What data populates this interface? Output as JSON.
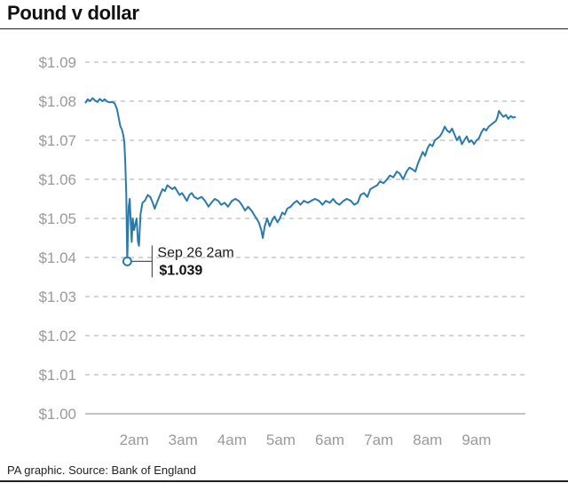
{
  "title": "Pound v dollar",
  "source": "PA graphic. Source: Bank of England",
  "colors": {
    "line": "#2a7aaa",
    "grid": "#bdbdbd",
    "axis": "#9a9a9a",
    "text": "#1a1a1a"
  },
  "chart_data": {
    "type": "line",
    "title": "Pound v dollar",
    "xlabel": "",
    "ylabel": "",
    "ylim": [
      1.0,
      1.09
    ],
    "xlim": [
      1.0,
      10.0
    ],
    "grid": true,
    "y_ticks": [
      {
        "value": 1.09,
        "label": "$1.09"
      },
      {
        "value": 1.08,
        "label": "$1.08"
      },
      {
        "value": 1.07,
        "label": "$1.07"
      },
      {
        "value": 1.06,
        "label": "$1.06"
      },
      {
        "value": 1.05,
        "label": "$1.05"
      },
      {
        "value": 1.04,
        "label": "$1.04"
      },
      {
        "value": 1.03,
        "label": "$1.03"
      },
      {
        "value": 1.02,
        "label": "$1.02"
      },
      {
        "value": 1.01,
        "label": "$1.01"
      },
      {
        "value": 1.0,
        "label": "$1.00"
      }
    ],
    "x_ticks": [
      {
        "value": 2,
        "label": "2am"
      },
      {
        "value": 3,
        "label": "3am"
      },
      {
        "value": 4,
        "label": "4am"
      },
      {
        "value": 5,
        "label": "5am"
      },
      {
        "value": 6,
        "label": "6am"
      },
      {
        "value": 7,
        "label": "7am"
      },
      {
        "value": 8,
        "label": "8am"
      },
      {
        "value": 9,
        "label": "9am"
      }
    ],
    "series": [
      {
        "points": [
          [
            1.0,
            1.0795
          ],
          [
            1.05,
            1.0805
          ],
          [
            1.1,
            1.08
          ],
          [
            1.15,
            1.0808
          ],
          [
            1.2,
            1.0802
          ],
          [
            1.25,
            1.0798
          ],
          [
            1.3,
            1.0806
          ],
          [
            1.35,
            1.08
          ],
          [
            1.4,
            1.0805
          ],
          [
            1.45,
            1.0799
          ],
          [
            1.5,
            1.0797
          ],
          [
            1.55,
            1.0798
          ],
          [
            1.6,
            1.0795
          ],
          [
            1.65,
            1.078
          ],
          [
            1.68,
            1.076
          ],
          [
            1.72,
            1.0735
          ],
          [
            1.75,
            1.0728
          ],
          [
            1.78,
            1.0712
          ],
          [
            1.8,
            1.0695
          ],
          [
            1.82,
            1.064
          ],
          [
            1.84,
            1.056
          ],
          [
            1.855,
            1.043
          ],
          [
            1.86,
            1.039
          ],
          [
            1.875,
            1.047
          ],
          [
            1.89,
            1.053
          ],
          [
            1.91,
            1.055
          ],
          [
            1.93,
            1.049
          ],
          [
            1.95,
            1.044
          ],
          [
            1.97,
            1.05
          ],
          [
            2.0,
            1.047
          ],
          [
            2.05,
            1.05
          ],
          [
            2.08,
            1.044
          ],
          [
            2.1,
            1.043
          ],
          [
            2.13,
            1.051
          ],
          [
            2.17,
            1.054
          ],
          [
            2.22,
            1.0545
          ],
          [
            2.28,
            1.056
          ],
          [
            2.33,
            1.0555
          ],
          [
            2.38,
            1.054
          ],
          [
            2.42,
            1.0525
          ],
          [
            2.48,
            1.0545
          ],
          [
            2.53,
            1.056
          ],
          [
            2.58,
            1.0575
          ],
          [
            2.63,
            1.057
          ],
          [
            2.68,
            1.0585
          ],
          [
            2.73,
            1.058
          ],
          [
            2.78,
            1.0575
          ],
          [
            2.83,
            1.058
          ],
          [
            2.88,
            1.057
          ],
          [
            2.93,
            1.056
          ],
          [
            2.98,
            1.0565
          ],
          [
            3.03,
            1.0555
          ],
          [
            3.08,
            1.0545
          ],
          [
            3.13,
            1.056
          ],
          [
            3.18,
            1.0565
          ],
          [
            3.23,
            1.0555
          ],
          [
            3.3,
            1.055
          ],
          [
            3.38,
            1.0555
          ],
          [
            3.45,
            1.0545
          ],
          [
            3.52,
            1.053
          ],
          [
            3.58,
            1.054
          ],
          [
            3.65,
            1.055
          ],
          [
            3.72,
            1.0545
          ],
          [
            3.78,
            1.0535
          ],
          [
            3.85,
            1.054
          ],
          [
            3.92,
            1.053
          ],
          [
            4.0,
            1.0545
          ],
          [
            4.07,
            1.055
          ],
          [
            4.14,
            1.0545
          ],
          [
            4.2,
            1.0535
          ],
          [
            4.27,
            1.052
          ],
          [
            4.33,
            1.053
          ],
          [
            4.4,
            1.052
          ],
          [
            4.45,
            1.051
          ],
          [
            4.5,
            1.05
          ],
          [
            4.55,
            1.049
          ],
          [
            4.6,
            1.047
          ],
          [
            4.63,
            1.045
          ],
          [
            4.67,
            1.048
          ],
          [
            4.72,
            1.05
          ],
          [
            4.77,
            1.048
          ],
          [
            4.82,
            1.0495
          ],
          [
            4.87,
            1.0505
          ],
          [
            4.93,
            1.049
          ],
          [
            4.98,
            1.05
          ],
          [
            5.03,
            1.0515
          ],
          [
            5.08,
            1.051
          ],
          [
            5.13,
            1.0525
          ],
          [
            5.2,
            1.053
          ],
          [
            5.27,
            1.054
          ],
          [
            5.33,
            1.0545
          ],
          [
            5.4,
            1.0535
          ],
          [
            5.47,
            1.0545
          ],
          [
            5.55,
            1.054
          ],
          [
            5.62,
            1.0545
          ],
          [
            5.7,
            1.055
          ],
          [
            5.78,
            1.0545
          ],
          [
            5.85,
            1.0535
          ],
          [
            5.92,
            1.0545
          ],
          [
            6.0,
            1.054
          ],
          [
            6.07,
            1.055
          ],
          [
            6.13,
            1.054
          ],
          [
            6.2,
            1.0535
          ],
          [
            6.28,
            1.0545
          ],
          [
            6.35,
            1.055
          ],
          [
            6.43,
            1.0545
          ],
          [
            6.5,
            1.0535
          ],
          [
            6.57,
            1.054
          ],
          [
            6.63,
            1.056
          ],
          [
            6.7,
            1.0565
          ],
          [
            6.77,
            1.0555
          ],
          [
            6.83,
            1.0575
          ],
          [
            6.9,
            1.058
          ],
          [
            6.97,
            1.0585
          ],
          [
            7.03,
            1.0595
          ],
          [
            7.1,
            1.059
          ],
          [
            7.17,
            1.06
          ],
          [
            7.23,
            1.061
          ],
          [
            7.3,
            1.0605
          ],
          [
            7.37,
            1.062
          ],
          [
            7.43,
            1.0615
          ],
          [
            7.5,
            1.06
          ],
          [
            7.57,
            1.062
          ],
          [
            7.63,
            1.063
          ],
          [
            7.7,
            1.0625
          ],
          [
            7.75,
            1.062
          ],
          [
            7.8,
            1.064
          ],
          [
            7.85,
            1.0655
          ],
          [
            7.9,
            1.067
          ],
          [
            7.95,
            1.066
          ],
          [
            8.0,
            1.068
          ],
          [
            8.05,
            1.069
          ],
          [
            8.1,
            1.0685
          ],
          [
            8.15,
            1.07
          ],
          [
            8.2,
            1.0705
          ],
          [
            8.25,
            1.071
          ],
          [
            8.3,
            1.072
          ],
          [
            8.35,
            1.0735
          ],
          [
            8.4,
            1.0725
          ],
          [
            8.45,
            1.072
          ],
          [
            8.5,
            1.073
          ],
          [
            8.55,
            1.0715
          ],
          [
            8.6,
            1.07
          ],
          [
            8.65,
            1.071
          ],
          [
            8.7,
            1.069
          ],
          [
            8.75,
            1.07
          ],
          [
            8.8,
            1.071
          ],
          [
            8.85,
            1.0695
          ],
          [
            8.9,
            1.07
          ],
          [
            8.95,
            1.069
          ],
          [
            9.0,
            1.07
          ],
          [
            9.05,
            1.0705
          ],
          [
            9.1,
            1.072
          ],
          [
            9.15,
            1.073
          ],
          [
            9.2,
            1.0725
          ],
          [
            9.25,
            1.0735
          ],
          [
            9.3,
            1.074
          ],
          [
            9.35,
            1.0745
          ],
          [
            9.4,
            1.075
          ],
          [
            9.43,
            1.076
          ],
          [
            9.46,
            1.0775
          ],
          [
            9.5,
            1.0768
          ],
          [
            9.55,
            1.076
          ],
          [
            9.6,
            1.0765
          ],
          [
            9.65,
            1.0755
          ],
          [
            9.7,
            1.0762
          ],
          [
            9.75,
            1.0758
          ],
          [
            9.8,
            1.076
          ]
        ]
      }
    ],
    "annotation": {
      "x": 1.86,
      "y": 1.039,
      "label": "Sep 26 2am",
      "value_label": "$1.039"
    }
  }
}
